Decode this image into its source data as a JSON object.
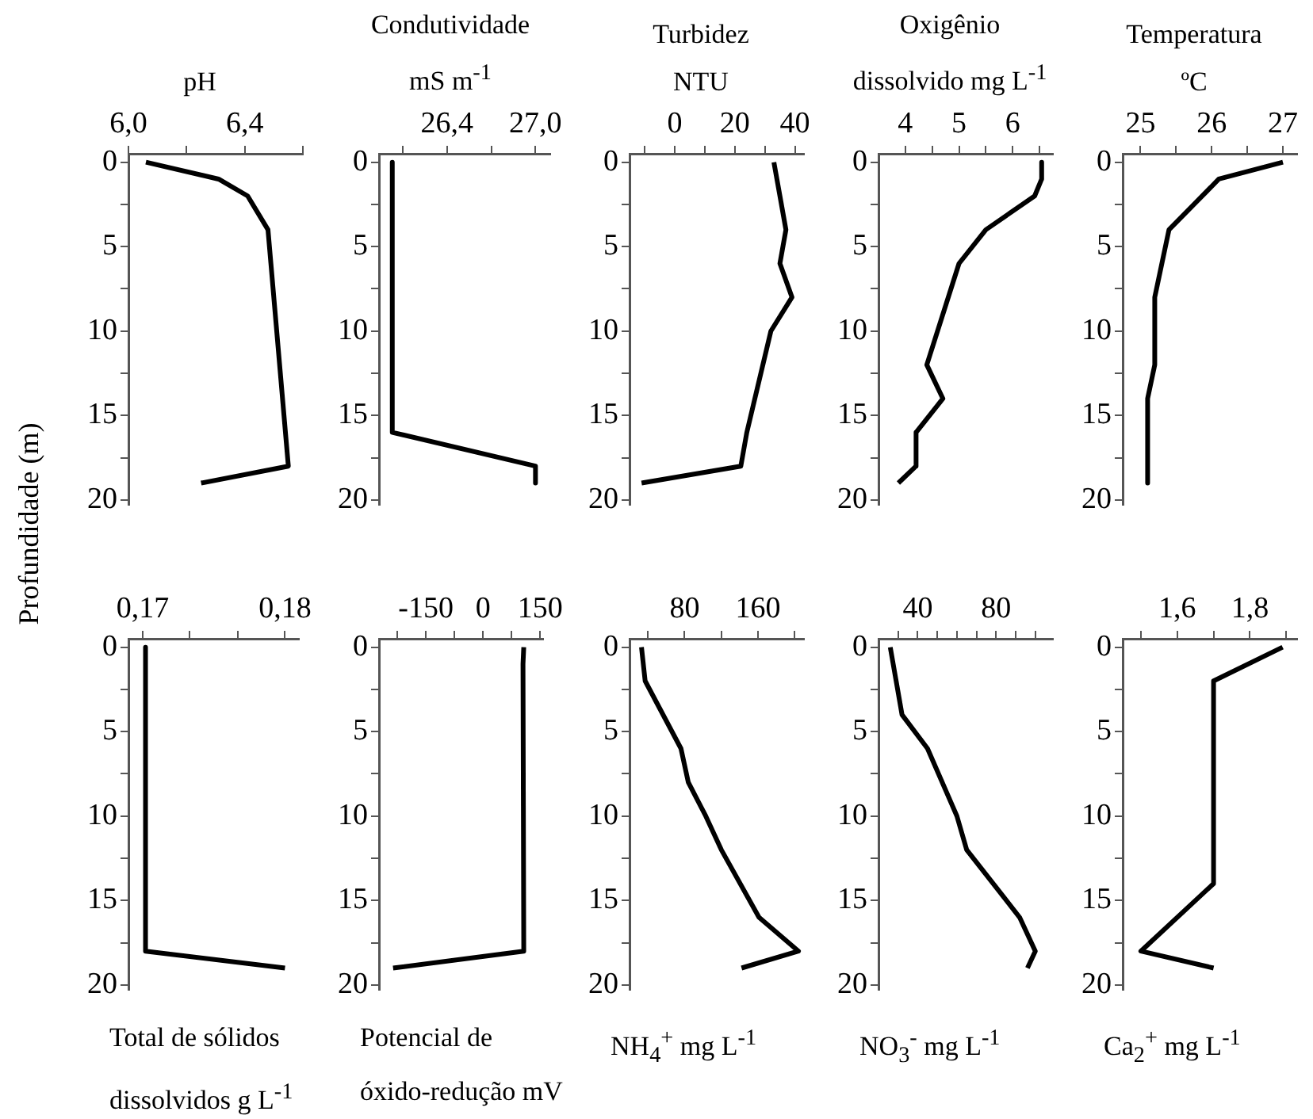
{
  "chart_data": [
    {
      "type": "line",
      "orientation": "horizontal",
      "xlabel": "pH",
      "ylabel": "Profundidade (m)",
      "color": "#000000",
      "x": [
        0,
        1,
        2,
        4,
        6,
        18,
        19
      ],
      "values": [
        6.06,
        6.31,
        6.41,
        6.48,
        6.49,
        6.55,
        6.25
      ],
      "xlim": [
        6.0,
        6.6
      ],
      "xticks": [
        {
          "value": 6.0,
          "label": "6,0"
        },
        {
          "value": 6.2,
          "label": null
        },
        {
          "value": 6.4,
          "label": "6,4"
        },
        {
          "value": 6.6,
          "label": null
        }
      ],
      "ylim": [
        20.3,
        -0.5
      ],
      "yticks": [
        0,
        {
          "value": 2.5,
          "label": null
        },
        5,
        {
          "value": 7.5,
          "label": null
        },
        10,
        {
          "value": 12.5,
          "label": null
        },
        15,
        {
          "value": 17.5,
          "label": null
        },
        20
      ]
    },
    {
      "type": "line",
      "orientation": "horizontal",
      "xlabel": "Condutividade\nmS m$^{-1}$",
      "color": "#000000",
      "x": [
        0,
        16,
        18,
        19
      ],
      "values": [
        26.03,
        26.03,
        27.0,
        27.0
      ],
      "xlim": [
        25.94,
        27.1
      ],
      "xticks": [
        {
          "value": 26.1,
          "label": null
        },
        {
          "value": 26.4,
          "label": "26,4"
        },
        {
          "value": 26.7,
          "label": null
        },
        {
          "value": 27.0,
          "label": "27,0"
        }
      ],
      "ylim": [
        20.3,
        -0.5
      ],
      "yticks": [
        0,
        {
          "value": 2.5,
          "label": null
        },
        5,
        {
          "value": 7.5,
          "label": null
        },
        10,
        {
          "value": 12.5,
          "label": null
        },
        15,
        {
          "value": 17.5,
          "label": null
        },
        20
      ]
    },
    {
      "type": "line",
      "orientation": "horizontal",
      "xlabel": "Turbidez\nNTU",
      "color": "#000000",
      "x": [
        0,
        4,
        6,
        8,
        10,
        16,
        18,
        19
      ],
      "values": [
        33,
        37,
        35,
        39,
        32,
        24,
        22,
        -11
      ],
      "xlim": [
        -15,
        43
      ],
      "xticks": [
        {
          "value": -10,
          "label": null
        },
        0,
        {
          "value": 10,
          "label": null
        },
        20,
        {
          "value": 30,
          "label": null
        },
        40
      ],
      "ylim": [
        20.3,
        -0.5
      ],
      "yticks": [
        0,
        {
          "value": 2.5,
          "label": null
        },
        5,
        {
          "value": 7.5,
          "label": null
        },
        10,
        {
          "value": 12.5,
          "label": null
        },
        15,
        {
          "value": 17.5,
          "label": null
        },
        20
      ]
    },
    {
      "type": "line",
      "orientation": "horizontal",
      "xlabel": "Oxigênio\ndissolvido mg L$^{-1}$",
      "color": "#000000",
      "x": [
        0,
        1,
        2,
        4,
        6,
        12,
        14,
        16,
        18,
        19
      ],
      "values": [
        6.54,
        6.54,
        6.41,
        5.5,
        5.0,
        4.4,
        4.7,
        4.2,
        4.2,
        3.87
      ],
      "xlim": [
        3.5,
        6.75
      ],
      "xticks": [
        4,
        {
          "value": 4.5,
          "label": null
        },
        5,
        {
          "value": 5.5,
          "label": null
        },
        6,
        {
          "value": 6.5,
          "label": null
        }
      ],
      "ylim": [
        20.3,
        -0.5
      ],
      "yticks": [
        0,
        {
          "value": 2.5,
          "label": null
        },
        5,
        {
          "value": 7.5,
          "label": null
        },
        10,
        {
          "value": 12.5,
          "label": null
        },
        15,
        {
          "value": 17.5,
          "label": null
        },
        20
      ]
    },
    {
      "type": "line",
      "orientation": "horizontal",
      "xlabel": "Temperatura\nºC",
      "color": "#000000",
      "x": [
        0,
        1,
        4,
        8,
        12,
        14,
        19
      ],
      "values": [
        27.0,
        26.1,
        25.4,
        25.2,
        25.2,
        25.1,
        25.1
      ],
      "xlim": [
        24.75,
        27.2
      ],
      "xticks": [
        25,
        {
          "value": 25.5,
          "label": null
        },
        26,
        {
          "value": 26.5,
          "label": null
        },
        27
      ],
      "ylim": [
        20.3,
        -0.5
      ],
      "yticks": [
        0,
        {
          "value": 2.5,
          "label": null
        },
        5,
        {
          "value": 7.5,
          "label": null
        },
        10,
        {
          "value": 12.5,
          "label": null
        },
        15,
        {
          "value": 17.5,
          "label": null
        },
        20
      ]
    },
    {
      "type": "line",
      "orientation": "horizontal",
      "xlabel": "Total de sólidos\ndissolvidos g L$^{-1}$",
      "color": "#000000",
      "x": [
        0,
        18,
        19
      ],
      "values": [
        0.1702,
        0.1702,
        0.18
      ],
      "xlim": [
        0.169,
        0.181
      ],
      "xticks": [
        {
          "value": 0.17,
          "label": "0,17"
        },
        {
          "value": 0.1733,
          "label": null
        },
        {
          "value": 0.1767,
          "label": null
        },
        {
          "value": 0.18,
          "label": "0,18"
        }
      ],
      "ylim": [
        20.3,
        -0.5
      ],
      "yticks": [
        0,
        {
          "value": 2.5,
          "label": null
        },
        5,
        {
          "value": 7.5,
          "label": null
        },
        10,
        {
          "value": 12.5,
          "label": null
        },
        15,
        {
          "value": 17.5,
          "label": null
        },
        20
      ]
    },
    {
      "type": "line",
      "orientation": "horizontal",
      "xlabel": "Potencial de\nóxido-redução mV",
      "color": "#000000",
      "x": [
        0,
        1,
        18,
        19
      ],
      "values": [
        107,
        105,
        107,
        -236
      ],
      "xlim": [
        -273,
        157
      ],
      "xticks": [
        {
          "value": -225,
          "label": null
        },
        -150,
        {
          "value": -75,
          "label": null
        },
        0,
        {
          "value": 75,
          "label": null
        },
        150
      ],
      "ylim": [
        20.3,
        -0.5
      ],
      "yticks": [
        0,
        {
          "value": 2.5,
          "label": null
        },
        5,
        {
          "value": 7.5,
          "label": null
        },
        10,
        {
          "value": 12.5,
          "label": null
        },
        15,
        {
          "value": 17.5,
          "label": null
        },
        20
      ]
    },
    {
      "type": "line",
      "orientation": "horizontal",
      "xlabel": "NH$_{4}$$^{+}$ mg L$^{-1}$",
      "color": "#000000",
      "x": [
        0,
        2,
        6,
        8,
        10,
        12,
        16,
        18,
        19
      ],
      "values": [
        33,
        37,
        76,
        84,
        103,
        120,
        161,
        204,
        142
      ],
      "xlim": [
        20,
        210
      ],
      "xticks": [
        {
          "value": 40,
          "label": null
        },
        80,
        {
          "value": 120,
          "label": null
        },
        160,
        {
          "value": 200,
          "label": null
        }
      ],
      "ylim": [
        20.3,
        -0.5
      ],
      "yticks": [
        0,
        {
          "value": 2.5,
          "label": null
        },
        5,
        {
          "value": 7.5,
          "label": null
        },
        10,
        {
          "value": 12.5,
          "label": null
        },
        15,
        {
          "value": 17.5,
          "label": null
        },
        20
      ]
    },
    {
      "type": "line",
      "orientation": "horizontal",
      "xlabel": "NO$_{3}$$^{-}$ mg L$^{-1}$",
      "color": "#000000",
      "x": [
        0,
        2,
        4,
        6,
        10,
        12,
        16,
        18,
        19
      ],
      "values": [
        26,
        29,
        32,
        45,
        60,
        65,
        92,
        100,
        96
      ],
      "xlim": [
        20,
        109
      ],
      "xticks": [
        {
          "value": 30,
          "label": null
        },
        40,
        {
          "value": 50,
          "label": null
        },
        {
          "value": 60,
          "label": null
        },
        {
          "value": 70,
          "label": null
        },
        80,
        {
          "value": 90,
          "label": null
        },
        {
          "value": 100,
          "label": null
        }
      ],
      "ylim": [
        20.3,
        -0.5
      ],
      "yticks": [
        0,
        {
          "value": 2.5,
          "label": null
        },
        5,
        {
          "value": 7.5,
          "label": null
        },
        10,
        {
          "value": 12.5,
          "label": null
        },
        15,
        {
          "value": 17.5,
          "label": null
        },
        20
      ]
    },
    {
      "type": "line",
      "orientation": "horizontal",
      "xlabel": "Ca$_{2}$$^{+}$ mg L$^{-1}$",
      "color": "#000000",
      "x": [
        0,
        2,
        14,
        18,
        19
      ],
      "values": [
        1.89,
        1.7,
        1.7,
        1.5,
        1.7
      ],
      "xlim": [
        1.45,
        1.93
      ],
      "xticks": [
        {
          "value": 1.5,
          "label": null
        },
        {
          "value": 1.6,
          "label": "1,6"
        },
        {
          "value": 1.7,
          "label": null
        },
        {
          "value": 1.8,
          "label": "1,8"
        },
        {
          "value": 1.9,
          "label": null
        }
      ],
      "ylim": [
        20.3,
        -0.5
      ],
      "yticks": [
        0,
        {
          "value": 2.5,
          "label": null
        },
        5,
        {
          "value": 7.5,
          "label": null
        },
        10,
        {
          "value": 12.5,
          "label": null
        },
        15,
        {
          "value": 17.5,
          "label": null
        },
        20
      ]
    }
  ]
}
